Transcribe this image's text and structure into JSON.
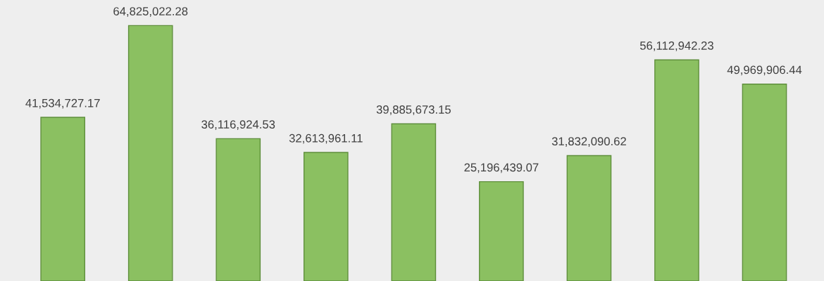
{
  "chart_data": {
    "type": "bar",
    "categories": [
      null,
      null,
      null,
      null,
      null,
      null,
      null,
      null,
      null
    ],
    "values": [
      41534727.17,
      64825022.28,
      36116924.53,
      32613961.11,
      39885673.15,
      25196439.07,
      31832090.62,
      56112942.23,
      49969906.44
    ],
    "value_labels": [
      "41,534,727.17",
      "64,825,022.28",
      "36,116,924.53",
      "32,613,961.11",
      "39,885,673.15",
      "25,196,439.07",
      "31,832,090.62",
      "56,112,942.23",
      "49,969,906.44"
    ],
    "color": "#8bc061",
    "grid": false,
    "legend": false
  }
}
